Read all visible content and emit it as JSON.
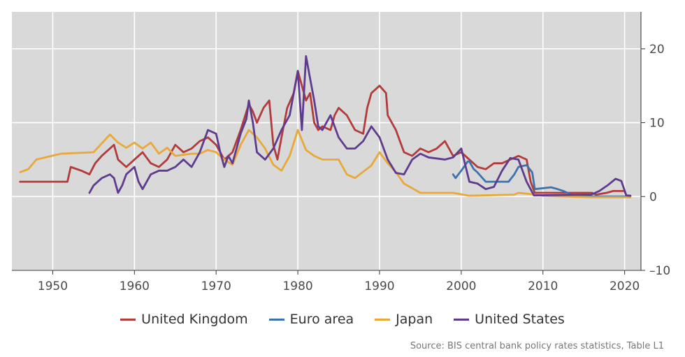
{
  "chart_data": {
    "type": "line",
    "xlim": [
      1945,
      2022
    ],
    "ylim": [
      -10,
      25
    ],
    "x_ticks": [
      1950,
      1960,
      1970,
      1980,
      1990,
      2000,
      2010,
      2020
    ],
    "y_ticks": [
      20,
      10,
      0,
      -10
    ],
    "y_tick_labels": [
      "20",
      "10",
      "0",
      "–10"
    ],
    "grid": true,
    "legend_position": "bottom",
    "source": "Source: BIS central bank policy rates statistics, Table L1",
    "series": [
      {
        "name": "United Kingdom",
        "color": "#b23b3b",
        "points": [
          [
            1946,
            2
          ],
          [
            1951.8,
            2
          ],
          [
            1952.2,
            4
          ],
          [
            1953.5,
            3.5
          ],
          [
            1954.5,
            3
          ],
          [
            1955.2,
            4.5
          ],
          [
            1956,
            5.5
          ],
          [
            1957.5,
            7
          ],
          [
            1958,
            5
          ],
          [
            1959,
            4
          ],
          [
            1960,
            5
          ],
          [
            1961,
            6
          ],
          [
            1962,
            4.5
          ],
          [
            1963,
            4
          ],
          [
            1964,
            5
          ],
          [
            1965,
            7
          ],
          [
            1966,
            6
          ],
          [
            1967,
            6.5
          ],
          [
            1968,
            7.5
          ],
          [
            1969,
            8
          ],
          [
            1970,
            7
          ],
          [
            1971,
            5
          ],
          [
            1972,
            6
          ],
          [
            1973,
            9
          ],
          [
            1974,
            12.5
          ],
          [
            1974.5,
            11.5
          ],
          [
            1975,
            10
          ],
          [
            1975.8,
            12
          ],
          [
            1976.5,
            13
          ],
          [
            1977,
            7
          ],
          [
            1977.5,
            5
          ],
          [
            1978,
            8
          ],
          [
            1978.7,
            12
          ],
          [
            1979.5,
            14
          ],
          [
            1980,
            17
          ],
          [
            1981,
            13
          ],
          [
            1981.5,
            14
          ],
          [
            1982,
            10
          ],
          [
            1982.5,
            9
          ],
          [
            1983,
            9.5
          ],
          [
            1984,
            9
          ],
          [
            1984.5,
            11
          ],
          [
            1985,
            12
          ],
          [
            1986,
            11
          ],
          [
            1987,
            9
          ],
          [
            1988,
            8.5
          ],
          [
            1988.5,
            12
          ],
          [
            1989,
            14
          ],
          [
            1990,
            15
          ],
          [
            1990.8,
            14
          ],
          [
            1991,
            11
          ],
          [
            1992,
            9
          ],
          [
            1993,
            6
          ],
          [
            1994,
            5.5
          ],
          [
            1995,
            6.5
          ],
          [
            1996,
            6
          ],
          [
            1997,
            6.5
          ],
          [
            1998,
            7.5
          ],
          [
            1999,
            5.5
          ],
          [
            2000,
            6
          ],
          [
            2001,
            5
          ],
          [
            2002,
            4
          ],
          [
            2003,
            3.7
          ],
          [
            2004,
            4.5
          ],
          [
            2005,
            4.5
          ],
          [
            2006,
            5
          ],
          [
            2007,
            5.5
          ],
          [
            2008,
            5
          ],
          [
            2008.5,
            2
          ],
          [
            2009,
            0.5
          ],
          [
            2016,
            0.5
          ],
          [
            2016.5,
            0.25
          ],
          [
            2017.8,
            0.5
          ],
          [
            2018.6,
            0.75
          ],
          [
            2020,
            0.75
          ],
          [
            2020.2,
            0.1
          ],
          [
            2020.7,
            0.1
          ]
        ]
      },
      {
        "name": "Euro area",
        "color": "#3d73ad",
        "points": [
          [
            1999,
            3
          ],
          [
            1999.3,
            2.5
          ],
          [
            2000,
            3.5
          ],
          [
            2000.8,
            4.75
          ],
          [
            2001,
            4.75
          ],
          [
            2001.5,
            3.75
          ],
          [
            2002,
            3.25
          ],
          [
            2003,
            2
          ],
          [
            2005.8,
            2
          ],
          [
            2006.5,
            3
          ],
          [
            2007,
            4
          ],
          [
            2008,
            4.25
          ],
          [
            2008.7,
            3.25
          ],
          [
            2009,
            1
          ],
          [
            2011,
            1.25
          ],
          [
            2011.8,
            1
          ],
          [
            2012.5,
            0.75
          ],
          [
            2013.5,
            0.25
          ],
          [
            2014.5,
            0.05
          ],
          [
            2016.2,
            0
          ],
          [
            2020.7,
            0
          ]
        ]
      },
      {
        "name": "Japan",
        "color": "#e8a93a",
        "points": [
          [
            1946,
            3.3
          ],
          [
            1947,
            3.7
          ],
          [
            1948,
            5
          ],
          [
            1951,
            5.8
          ],
          [
            1955,
            6
          ],
          [
            1957,
            8.4
          ],
          [
            1958,
            7.3
          ],
          [
            1959,
            6.6
          ],
          [
            1960,
            7.3
          ],
          [
            1961,
            6.5
          ],
          [
            1962,
            7.3
          ],
          [
            1963,
            5.8
          ],
          [
            1964,
            6.6
          ],
          [
            1965,
            5.5
          ],
          [
            1967,
            5.8
          ],
          [
            1968,
            5.8
          ],
          [
            1969,
            6.3
          ],
          [
            1970,
            6
          ],
          [
            1971,
            5
          ],
          [
            1972,
            4.3
          ],
          [
            1973,
            7
          ],
          [
            1974,
            9
          ],
          [
            1975,
            8
          ],
          [
            1976,
            6.5
          ],
          [
            1977,
            4.3
          ],
          [
            1978,
            3.5
          ],
          [
            1979,
            5.5
          ],
          [
            1980,
            9
          ],
          [
            1981,
            6.3
          ],
          [
            1982,
            5.5
          ],
          [
            1983,
            5
          ],
          [
            1985,
            5
          ],
          [
            1986,
            3
          ],
          [
            1987,
            2.5
          ],
          [
            1989,
            4.2
          ],
          [
            1990,
            6
          ],
          [
            1991,
            4.5
          ],
          [
            1992,
            3.3
          ],
          [
            1993,
            1.75
          ],
          [
            1995,
            0.5
          ],
          [
            1999,
            0.5
          ],
          [
            2001,
            0.1
          ],
          [
            2006.5,
            0.25
          ],
          [
            2007,
            0.5
          ],
          [
            2008.8,
            0.3
          ],
          [
            2010,
            0.1
          ],
          [
            2016,
            -0.1
          ],
          [
            2020.7,
            -0.1
          ]
        ]
      },
      {
        "name": "United States",
        "color": "#5e3b8c",
        "points": [
          [
            1954.5,
            0.5
          ],
          [
            1955,
            1.5
          ],
          [
            1956,
            2.5
          ],
          [
            1957,
            3
          ],
          [
            1957.5,
            2.5
          ],
          [
            1958,
            0.5
          ],
          [
            1958.5,
            1.5
          ],
          [
            1959,
            3
          ],
          [
            1960,
            4
          ],
          [
            1960.5,
            2
          ],
          [
            1961,
            1
          ],
          [
            1961.5,
            2
          ],
          [
            1962,
            3
          ],
          [
            1963,
            3.5
          ],
          [
            1964,
            3.5
          ],
          [
            1965,
            4
          ],
          [
            1966,
            5
          ],
          [
            1967,
            4
          ],
          [
            1968,
            6
          ],
          [
            1969,
            9
          ],
          [
            1970,
            8.5
          ],
          [
            1970.5,
            6
          ],
          [
            1971,
            4
          ],
          [
            1971.5,
            5.5
          ],
          [
            1972,
            4.5
          ],
          [
            1973,
            8.5
          ],
          [
            1973.7,
            10.5
          ],
          [
            1974,
            13
          ],
          [
            1974.5,
            10
          ],
          [
            1975,
            6
          ],
          [
            1976,
            5
          ],
          [
            1977,
            6.5
          ],
          [
            1978,
            9
          ],
          [
            1979,
            11
          ],
          [
            1980,
            17
          ],
          [
            1980.5,
            9
          ],
          [
            1981,
            19
          ],
          [
            1981.5,
            16
          ],
          [
            1982,
            13
          ],
          [
            1982.5,
            9.5
          ],
          [
            1983,
            9
          ],
          [
            1984,
            11
          ],
          [
            1985,
            8
          ],
          [
            1986,
            6.5
          ],
          [
            1987,
            6.5
          ],
          [
            1988,
            7.5
          ],
          [
            1989,
            9.5
          ],
          [
            1990,
            8
          ],
          [
            1991,
            5
          ],
          [
            1992,
            3.2
          ],
          [
            1993,
            3
          ],
          [
            1994,
            5
          ],
          [
            1995,
            5.8
          ],
          [
            1996,
            5.3
          ],
          [
            1998,
            5
          ],
          [
            1999,
            5.3
          ],
          [
            2000,
            6.5
          ],
          [
            2001,
            2
          ],
          [
            2002,
            1.75
          ],
          [
            2003,
            1
          ],
          [
            2004,
            1.3
          ],
          [
            2005,
            3.5
          ],
          [
            2006,
            5.2
          ],
          [
            2007,
            5
          ],
          [
            2008,
            2
          ],
          [
            2008.9,
            0.15
          ],
          [
            2015.9,
            0.25
          ],
          [
            2016.9,
            0.75
          ],
          [
            2017.9,
            1.5
          ],
          [
            2018.9,
            2.4
          ],
          [
            2019.6,
            2.1
          ],
          [
            2020.2,
            0.15
          ],
          [
            2020.7,
            0.1
          ]
        ]
      }
    ]
  }
}
